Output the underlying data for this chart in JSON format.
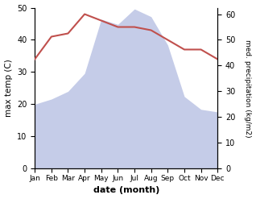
{
  "months": [
    "Jan",
    "Feb",
    "Mar",
    "Apr",
    "May",
    "Jun",
    "Jul",
    "Aug",
    "Sep",
    "Oct",
    "Nov",
    "Dec"
  ],
  "temperature": [
    34,
    41,
    42,
    48,
    46,
    44,
    44,
    43,
    40,
    37,
    37,
    34
  ],
  "precipitation": [
    25,
    27,
    30,
    37,
    58,
    56,
    62,
    59,
    48,
    28,
    23,
    22
  ],
  "temp_color": "#c0504d",
  "precip_fill_color": "#c5cce8",
  "temp_ylim": [
    0,
    50
  ],
  "precip_ylim": [
    0,
    62.5
  ],
  "xlabel": "date (month)",
  "ylabel_left": "max temp (C)",
  "ylabel_right": "med. precipitation (kg/m2)",
  "temp_yticks": [
    0,
    10,
    20,
    30,
    40,
    50
  ],
  "precip_yticks": [
    0,
    10,
    20,
    30,
    40,
    50,
    60
  ],
  "figsize": [
    3.18,
    2.47
  ],
  "dpi": 100
}
